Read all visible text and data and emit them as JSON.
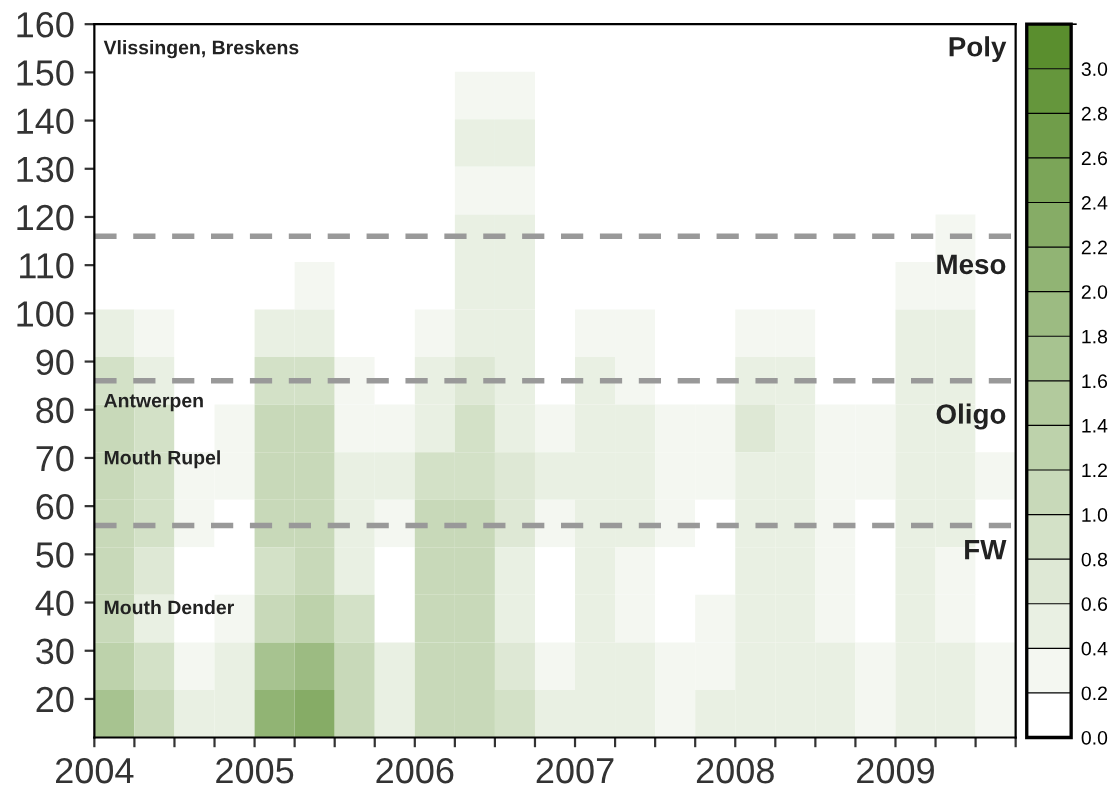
{
  "chart_data": {
    "type": "heatmap",
    "x": [
      2004.125,
      2004.375,
      2004.625,
      2004.875,
      2005.125,
      2005.375,
      2005.625,
      2005.875,
      2006.125,
      2006.375,
      2006.625,
      2006.875,
      2007.125,
      2007.375,
      2007.625,
      2007.875,
      2008.125,
      2008.375,
      2008.625,
      2008.875,
      2009.125,
      2009.375,
      2009.625
    ],
    "cells": [
      [
        0,
        0,
        0,
        0,
        0,
        0,
        0,
        0,
        0,
        0,
        0,
        0,
        0,
        0,
        0,
        0,
        0,
        0,
        0,
        0,
        0,
        0,
        0
      ],
      [
        0,
        0,
        0,
        0,
        0,
        0,
        0,
        0,
        0,
        0.2,
        0.2,
        0,
        0,
        0,
        0,
        0,
        0,
        0,
        0,
        0,
        0,
        0,
        0
      ],
      [
        0,
        0,
        0,
        0,
        0,
        0,
        0,
        0,
        0,
        0.4,
        0.4,
        0,
        0,
        0,
        0,
        0,
        0,
        0,
        0,
        0,
        0,
        0,
        0
      ],
      [
        0,
        0,
        0,
        0,
        0,
        0,
        0,
        0,
        0,
        0.3,
        0.3,
        0,
        0,
        0,
        0,
        0,
        0,
        0,
        0,
        0,
        0,
        0,
        0
      ],
      [
        0,
        0,
        0,
        0,
        0,
        0,
        0,
        0,
        0,
        0.4,
        0.4,
        0,
        0,
        0,
        0,
        0,
        0,
        0,
        0,
        0,
        0,
        0.2,
        0
      ],
      [
        0,
        0,
        0,
        0,
        0,
        0.3,
        0,
        0,
        0,
        0.4,
        0.4,
        0,
        0,
        0,
        0,
        0,
        0,
        0,
        0,
        0,
        0.3,
        0.3,
        0
      ],
      [
        0.4,
        0.3,
        0,
        0,
        0.5,
        0.5,
        0,
        0,
        0.3,
        0.6,
        0.5,
        0,
        0.2,
        0.2,
        0,
        0,
        0.3,
        0.3,
        0,
        0,
        0.4,
        0.4,
        0
      ],
      [
        0.8,
        0.6,
        0,
        0,
        0.9,
        0.9,
        0.3,
        0,
        0.5,
        0.7,
        0.6,
        0,
        0.4,
        0.3,
        0,
        0,
        0.5,
        0.4,
        0,
        0,
        0.5,
        0.5,
        0
      ],
      [
        1.0,
        0.8,
        0,
        0.2,
        1.2,
        1.1,
        0.3,
        0.2,
        0.6,
        0.8,
        0.6,
        0.2,
        0.5,
        0.4,
        0.2,
        0.2,
        0.7,
        0.6,
        0.3,
        0.2,
        0.5,
        0.4,
        0
      ],
      [
        1.0,
        0.9,
        0.3,
        0.3,
        1.2,
        1.1,
        0.4,
        0.4,
        0.9,
        0.9,
        0.7,
        0.4,
        0.6,
        0.5,
        0.3,
        0.3,
        0.6,
        0.5,
        0.3,
        0.2,
        0.5,
        0.4,
        0.2
      ],
      [
        1.0,
        0.8,
        0.2,
        0,
        1.0,
        1.0,
        0.5,
        0.2,
        1.0,
        1.0,
        0.7,
        0.2,
        0.5,
        0.4,
        0.2,
        0,
        0.4,
        0.4,
        0.2,
        0,
        0.5,
        0.4,
        0
      ],
      [
        1.0,
        0.7,
        0,
        0,
        0.9,
        1.0,
        0.6,
        0,
        1.0,
        1.0,
        0.6,
        0,
        0.5,
        0.3,
        0,
        0,
        0.4,
        0.4,
        0.2,
        0,
        0.5,
        0.3,
        0
      ],
      [
        1.2,
        0.6,
        0,
        0.2,
        1.1,
        1.3,
        0.8,
        0,
        1.0,
        1.1,
        0.6,
        0,
        0.5,
        0.3,
        0,
        0.2,
        0.4,
        0.4,
        0.3,
        0,
        0.5,
        0.3,
        0
      ],
      [
        1.4,
        0.8,
        0.2,
        0.4,
        1.6,
        1.8,
        1.0,
        0.4,
        1.1,
        1.2,
        0.7,
        0.2,
        0.6,
        0.4,
        0.2,
        0.3,
        0.5,
        0.5,
        0.4,
        0.2,
        0.6,
        0.4,
        0.2
      ],
      [
        1.6,
        1.0,
        0.4,
        0.6,
        2.0,
        2.2,
        1.2,
        0.6,
        1.0,
        1.0,
        0.8,
        0.4,
        0.6,
        0.5,
        0.3,
        0.4,
        0.5,
        0.5,
        0.4,
        0.3,
        0.6,
        0.5,
        0.3
      ]
    ],
    "colors": [
      "#ffffff",
      "#5a8e2e"
    ],
    "xlim": [
      2004,
      2009.75
    ],
    "xticks": [
      2004,
      {
        "value": 2004.25,
        "label": null
      },
      {
        "value": 2004.5,
        "label": null
      },
      {
        "value": 2004.75,
        "label": null
      },
      2005,
      {
        "value": 2005.25,
        "label": null
      },
      {
        "value": 2005.5,
        "label": null
      },
      {
        "value": 2005.75,
        "label": null
      },
      2006,
      {
        "value": 2006.25,
        "label": null
      },
      {
        "value": 2006.5,
        "label": null
      },
      {
        "value": 2006.75,
        "label": null
      },
      2007,
      {
        "value": 2007.25,
        "label": null
      },
      {
        "value": 2007.5,
        "label": null
      },
      {
        "value": 2007.75,
        "label": null
      },
      2008,
      {
        "value": 2008.25,
        "label": null
      },
      {
        "value": 2008.5,
        "label": null
      },
      {
        "value": 2008.75,
        "label": null
      },
      2009,
      {
        "value": 2009.25,
        "label": null
      },
      {
        "value": 2009.5,
        "label": null
      },
      {
        "value": 2009.75,
        "label": null
      }
    ],
    "ylim": [
      12,
      160
    ],
    "yticks": [
      20,
      30,
      40,
      50,
      60,
      70,
      80,
      90,
      100,
      110,
      120,
      130,
      140,
      150,
      160
    ],
    "clim": [
      0,
      3.2
    ],
    "cticks": [
      {
        "value": 0,
        "label": "0.0"
      },
      {
        "value": 0.2,
        "label": "0.2"
      },
      {
        "value": 0.4,
        "label": "0.4"
      },
      {
        "value": 0.6,
        "label": "0.6"
      },
      {
        "value": 0.8,
        "label": "0.8"
      },
      {
        "value": 1.0,
        "label": "1.0"
      },
      {
        "value": 1.2,
        "label": "1.2"
      },
      {
        "value": 1.4,
        "label": "1.4"
      },
      {
        "value": 1.6,
        "label": "1.6"
      },
      {
        "value": 1.8,
        "label": "1.8"
      },
      {
        "value": 2.0,
        "label": "2.0"
      },
      {
        "value": 2.2,
        "label": "2.2"
      },
      {
        "value": 2.4,
        "label": "2.4"
      },
      {
        "value": 2.6,
        "label": "2.6"
      },
      {
        "value": 2.8,
        "label": "2.8"
      },
      {
        "value": 3.0,
        "label": "3.0"
      }
    ],
    "ref_lines": [
      {
        "axis": "y",
        "value": 116,
        "color": "#999999",
        "line_style": "dashed"
      },
      {
        "axis": "y",
        "value": 86,
        "color": "#999999",
        "line_style": "dashed"
      },
      {
        "axis": "y",
        "value": 56,
        "color": "#999999",
        "line_style": "dashed"
      }
    ],
    "annotations": [
      "Vlissingen, Breskens",
      "Antwerpen",
      "Mouth Rupel",
      "Mouth Dender",
      "Poly",
      "Meso",
      "Oligo",
      "FW"
    ],
    "grid": false
  }
}
